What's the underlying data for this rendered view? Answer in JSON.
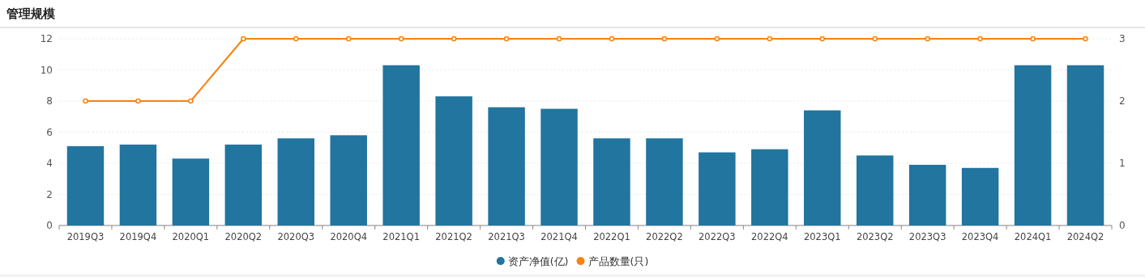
{
  "chart_data": {
    "type": "bar",
    "title": "管理规模",
    "categories": [
      "2019Q3",
      "2019Q4",
      "2020Q1",
      "2020Q2",
      "2020Q3",
      "2020Q4",
      "2021Q1",
      "2021Q2",
      "2021Q3",
      "2021Q4",
      "2022Q1",
      "2022Q2",
      "2022Q3",
      "2022Q4",
      "2023Q1",
      "2023Q2",
      "2023Q3",
      "2023Q4",
      "2024Q1",
      "2024Q2"
    ],
    "series": [
      {
        "name": "资产净值(亿)",
        "color": "#21759f",
        "values": [
          5.1,
          5.2,
          4.3,
          5.2,
          5.6,
          5.8,
          10.3,
          8.3,
          7.6,
          7.5,
          5.6,
          5.6,
          4.7,
          4.9,
          7.4,
          4.5,
          3.9,
          3.7,
          10.3,
          10.3
        ]
      },
      {
        "name": "产品数量(只)",
        "type": "line",
        "axis": "y2",
        "color": "#f5830f",
        "marker": "circle",
        "values": [
          2,
          2,
          2,
          3,
          3,
          3,
          3,
          3,
          3,
          3,
          3,
          3,
          3,
          3,
          3,
          3,
          3,
          3,
          3,
          3
        ]
      }
    ],
    "ylim": [
      0,
      12
    ],
    "yticks": [
      0,
      2,
      4,
      6,
      8,
      10,
      12
    ],
    "y2lim": [
      0,
      3
    ],
    "y2ticks": [
      0,
      1,
      2,
      3
    ],
    "grid": "y",
    "legend": "bottom"
  }
}
